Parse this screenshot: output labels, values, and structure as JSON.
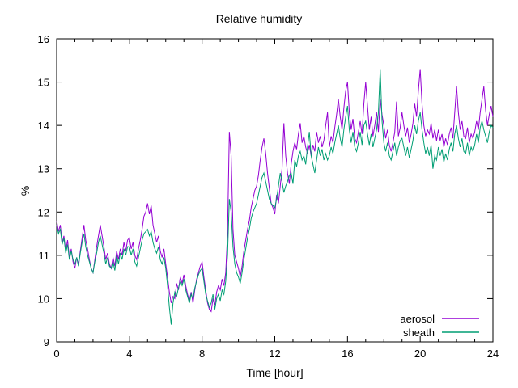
{
  "chart_data": {
    "type": "line",
    "title": "Relative humidity",
    "xlabel": "Time [hour]",
    "ylabel": "%",
    "xlim": [
      0,
      24
    ],
    "ylim": [
      9,
      16
    ],
    "grid": false,
    "legend_position": "inside-bottom-right",
    "xticks": {
      "major": [
        0,
        4,
        8,
        12,
        16,
        20,
        24
      ],
      "labels": [
        "0",
        "4",
        "8",
        "12",
        "16",
        "20",
        "24"
      ],
      "minor_step": 1
    },
    "yticks": {
      "major": [
        9,
        10,
        11,
        12,
        13,
        14,
        15,
        16
      ],
      "labels": [
        "9",
        "10",
        "11",
        "12",
        "13",
        "14",
        "15",
        "16"
      ]
    },
    "x_start": 0,
    "x_step": 0.1,
    "series": [
      {
        "name": "aerosol",
        "color": "#9400D3",
        "values": [
          11.8,
          11.55,
          11.7,
          11.3,
          11.45,
          11.1,
          11.35,
          10.95,
          11.15,
          10.85,
          10.7,
          10.95,
          10.8,
          11.1,
          11.4,
          11.7,
          11.35,
          11.15,
          10.9,
          10.7,
          10.6,
          10.9,
          11.2,
          11.45,
          11.7,
          11.45,
          11.2,
          10.9,
          11.05,
          10.8,
          10.7,
          10.95,
          10.75,
          11.1,
          10.9,
          11.15,
          11.0,
          11.3,
          11.1,
          11.35,
          11.4,
          11.15,
          11.3,
          11.0,
          10.9,
          11.15,
          11.35,
          11.6,
          11.9,
          12.0,
          12.2,
          11.95,
          12.15,
          11.7,
          11.5,
          11.3,
          11.45,
          11.1,
          10.95,
          11.15,
          10.8,
          10.5,
          10.15,
          9.9,
          10.05,
          10.0,
          10.35,
          10.2,
          10.5,
          10.35,
          10.55,
          10.3,
          10.1,
          9.95,
          10.15,
          9.9,
          10.2,
          10.45,
          10.6,
          10.75,
          10.85,
          10.5,
          10.2,
          9.9,
          9.75,
          9.7,
          10.0,
          9.85,
          10.15,
          10.3,
          10.2,
          10.45,
          10.3,
          10.6,
          11.5,
          13.85,
          13.3,
          11.6,
          11.0,
          10.85,
          10.7,
          10.5,
          10.75,
          11.1,
          11.35,
          11.6,
          11.8,
          12.1,
          12.3,
          12.5,
          12.6,
          12.85,
          13.2,
          13.5,
          13.7,
          13.35,
          12.9,
          12.55,
          12.2,
          12.1,
          11.95,
          12.4,
          12.2,
          12.6,
          13.0,
          14.05,
          13.3,
          12.9,
          12.65,
          13.1,
          13.4,
          13.6,
          13.45,
          13.8,
          14.05,
          13.6,
          13.75,
          13.5,
          13.35,
          13.55,
          13.3,
          13.55,
          13.4,
          13.85,
          13.6,
          13.75,
          13.5,
          13.65,
          14.0,
          14.3,
          13.5,
          13.75,
          13.6,
          13.95,
          14.25,
          14.6,
          14.2,
          13.9,
          14.4,
          14.8,
          15.0,
          14.3,
          13.9,
          14.15,
          13.7,
          13.6,
          13.85,
          14.1,
          13.8,
          14.5,
          15.0,
          14.45,
          13.9,
          14.2,
          13.75,
          14.0,
          14.3,
          13.85,
          14.6,
          14.25,
          14.0,
          13.7,
          13.9,
          13.55,
          13.4,
          13.6,
          13.85,
          14.55,
          13.75,
          13.95,
          14.3,
          14.0,
          13.75,
          13.95,
          13.6,
          13.8,
          14.05,
          14.5,
          14.2,
          14.8,
          15.3,
          14.5,
          14.0,
          13.75,
          13.9,
          13.8,
          14.05,
          13.7,
          13.9,
          13.65,
          13.9,
          13.65,
          13.8,
          13.5,
          13.7,
          13.55,
          13.8,
          13.95,
          13.7,
          14.3,
          14.9,
          14.3,
          13.9,
          14.1,
          13.75,
          13.7,
          13.95,
          13.6,
          13.8,
          13.7,
          13.85,
          14.1,
          13.9,
          14.3,
          14.6,
          14.9,
          14.35,
          14.0,
          14.25,
          14.45,
          14.2
        ]
      },
      {
        "name": "sheath",
        "color": "#009E73",
        "values": [
          11.7,
          11.5,
          11.6,
          11.25,
          11.4,
          11.05,
          11.25,
          10.9,
          11.1,
          10.9,
          10.8,
          10.95,
          10.75,
          11.05,
          11.3,
          11.5,
          11.2,
          11.0,
          10.85,
          10.7,
          10.6,
          10.85,
          11.05,
          11.3,
          11.45,
          11.25,
          11.05,
          10.8,
          10.95,
          10.75,
          10.7,
          10.85,
          10.65,
          11.0,
          10.8,
          11.05,
          10.9,
          11.15,
          11.0,
          11.2,
          11.2,
          11.0,
          11.15,
          10.85,
          10.75,
          10.95,
          11.15,
          11.35,
          11.5,
          11.55,
          11.6,
          11.45,
          11.55,
          11.3,
          11.15,
          11.05,
          11.2,
          10.9,
          10.8,
          10.95,
          10.7,
          10.3,
          9.8,
          9.4,
          9.9,
          10.15,
          10.05,
          10.25,
          10.4,
          10.3,
          10.45,
          10.2,
          10.05,
          9.9,
          10.1,
          10.0,
          10.25,
          10.4,
          10.55,
          10.65,
          10.7,
          10.4,
          10.1,
          9.95,
          9.8,
          9.9,
          10.1,
          9.75,
          10.0,
          10.1,
          9.95,
          10.2,
          10.1,
          10.4,
          11.0,
          12.3,
          12.0,
          11.2,
          10.8,
          10.6,
          10.5,
          10.35,
          10.6,
          10.9,
          11.15,
          11.4,
          11.6,
          11.85,
          12.0,
          12.1,
          12.2,
          12.4,
          12.6,
          12.8,
          12.9,
          12.7,
          12.5,
          12.3,
          12.2,
          12.15,
          12.1,
          12.3,
          12.6,
          12.9,
          12.7,
          12.45,
          12.6,
          12.7,
          12.85,
          12.9,
          12.65,
          13.2,
          13.05,
          13.3,
          13.4,
          13.2,
          13.3,
          13.1,
          13.5,
          13.85,
          13.3,
          13.1,
          12.9,
          13.2,
          13.5,
          13.3,
          13.45,
          13.2,
          13.35,
          13.2,
          13.3,
          13.5,
          13.35,
          13.6,
          13.8,
          14.0,
          13.7,
          13.5,
          13.9,
          14.2,
          14.45,
          13.9,
          13.6,
          13.85,
          13.5,
          13.4,
          13.6,
          13.85,
          13.55,
          14.0,
          14.1,
          13.8,
          13.55,
          13.8,
          13.5,
          13.7,
          13.9,
          14.3,
          15.3,
          14.1,
          13.6,
          13.4,
          13.6,
          13.3,
          13.2,
          13.4,
          13.6,
          13.3,
          13.5,
          13.65,
          13.7,
          13.5,
          13.3,
          13.5,
          13.25,
          13.45,
          13.65,
          14.0,
          13.8,
          14.1,
          14.3,
          13.9,
          13.6,
          13.35,
          13.5,
          13.3,
          13.55,
          13.0,
          13.3,
          13.2,
          13.5,
          13.3,
          13.45,
          13.15,
          13.35,
          13.2,
          13.45,
          13.6,
          13.4,
          13.8,
          14.0,
          13.7,
          13.5,
          13.7,
          13.4,
          13.35,
          13.6,
          13.3,
          13.5,
          13.4,
          13.55,
          13.8,
          13.6,
          13.95,
          14.1,
          13.9,
          13.75,
          13.6,
          13.85,
          14.0,
          13.95
        ]
      }
    ],
    "legend": [
      {
        "label": "aerosol",
        "color": "#9400D3"
      },
      {
        "label": "sheath",
        "color": "#009E73"
      }
    ]
  }
}
